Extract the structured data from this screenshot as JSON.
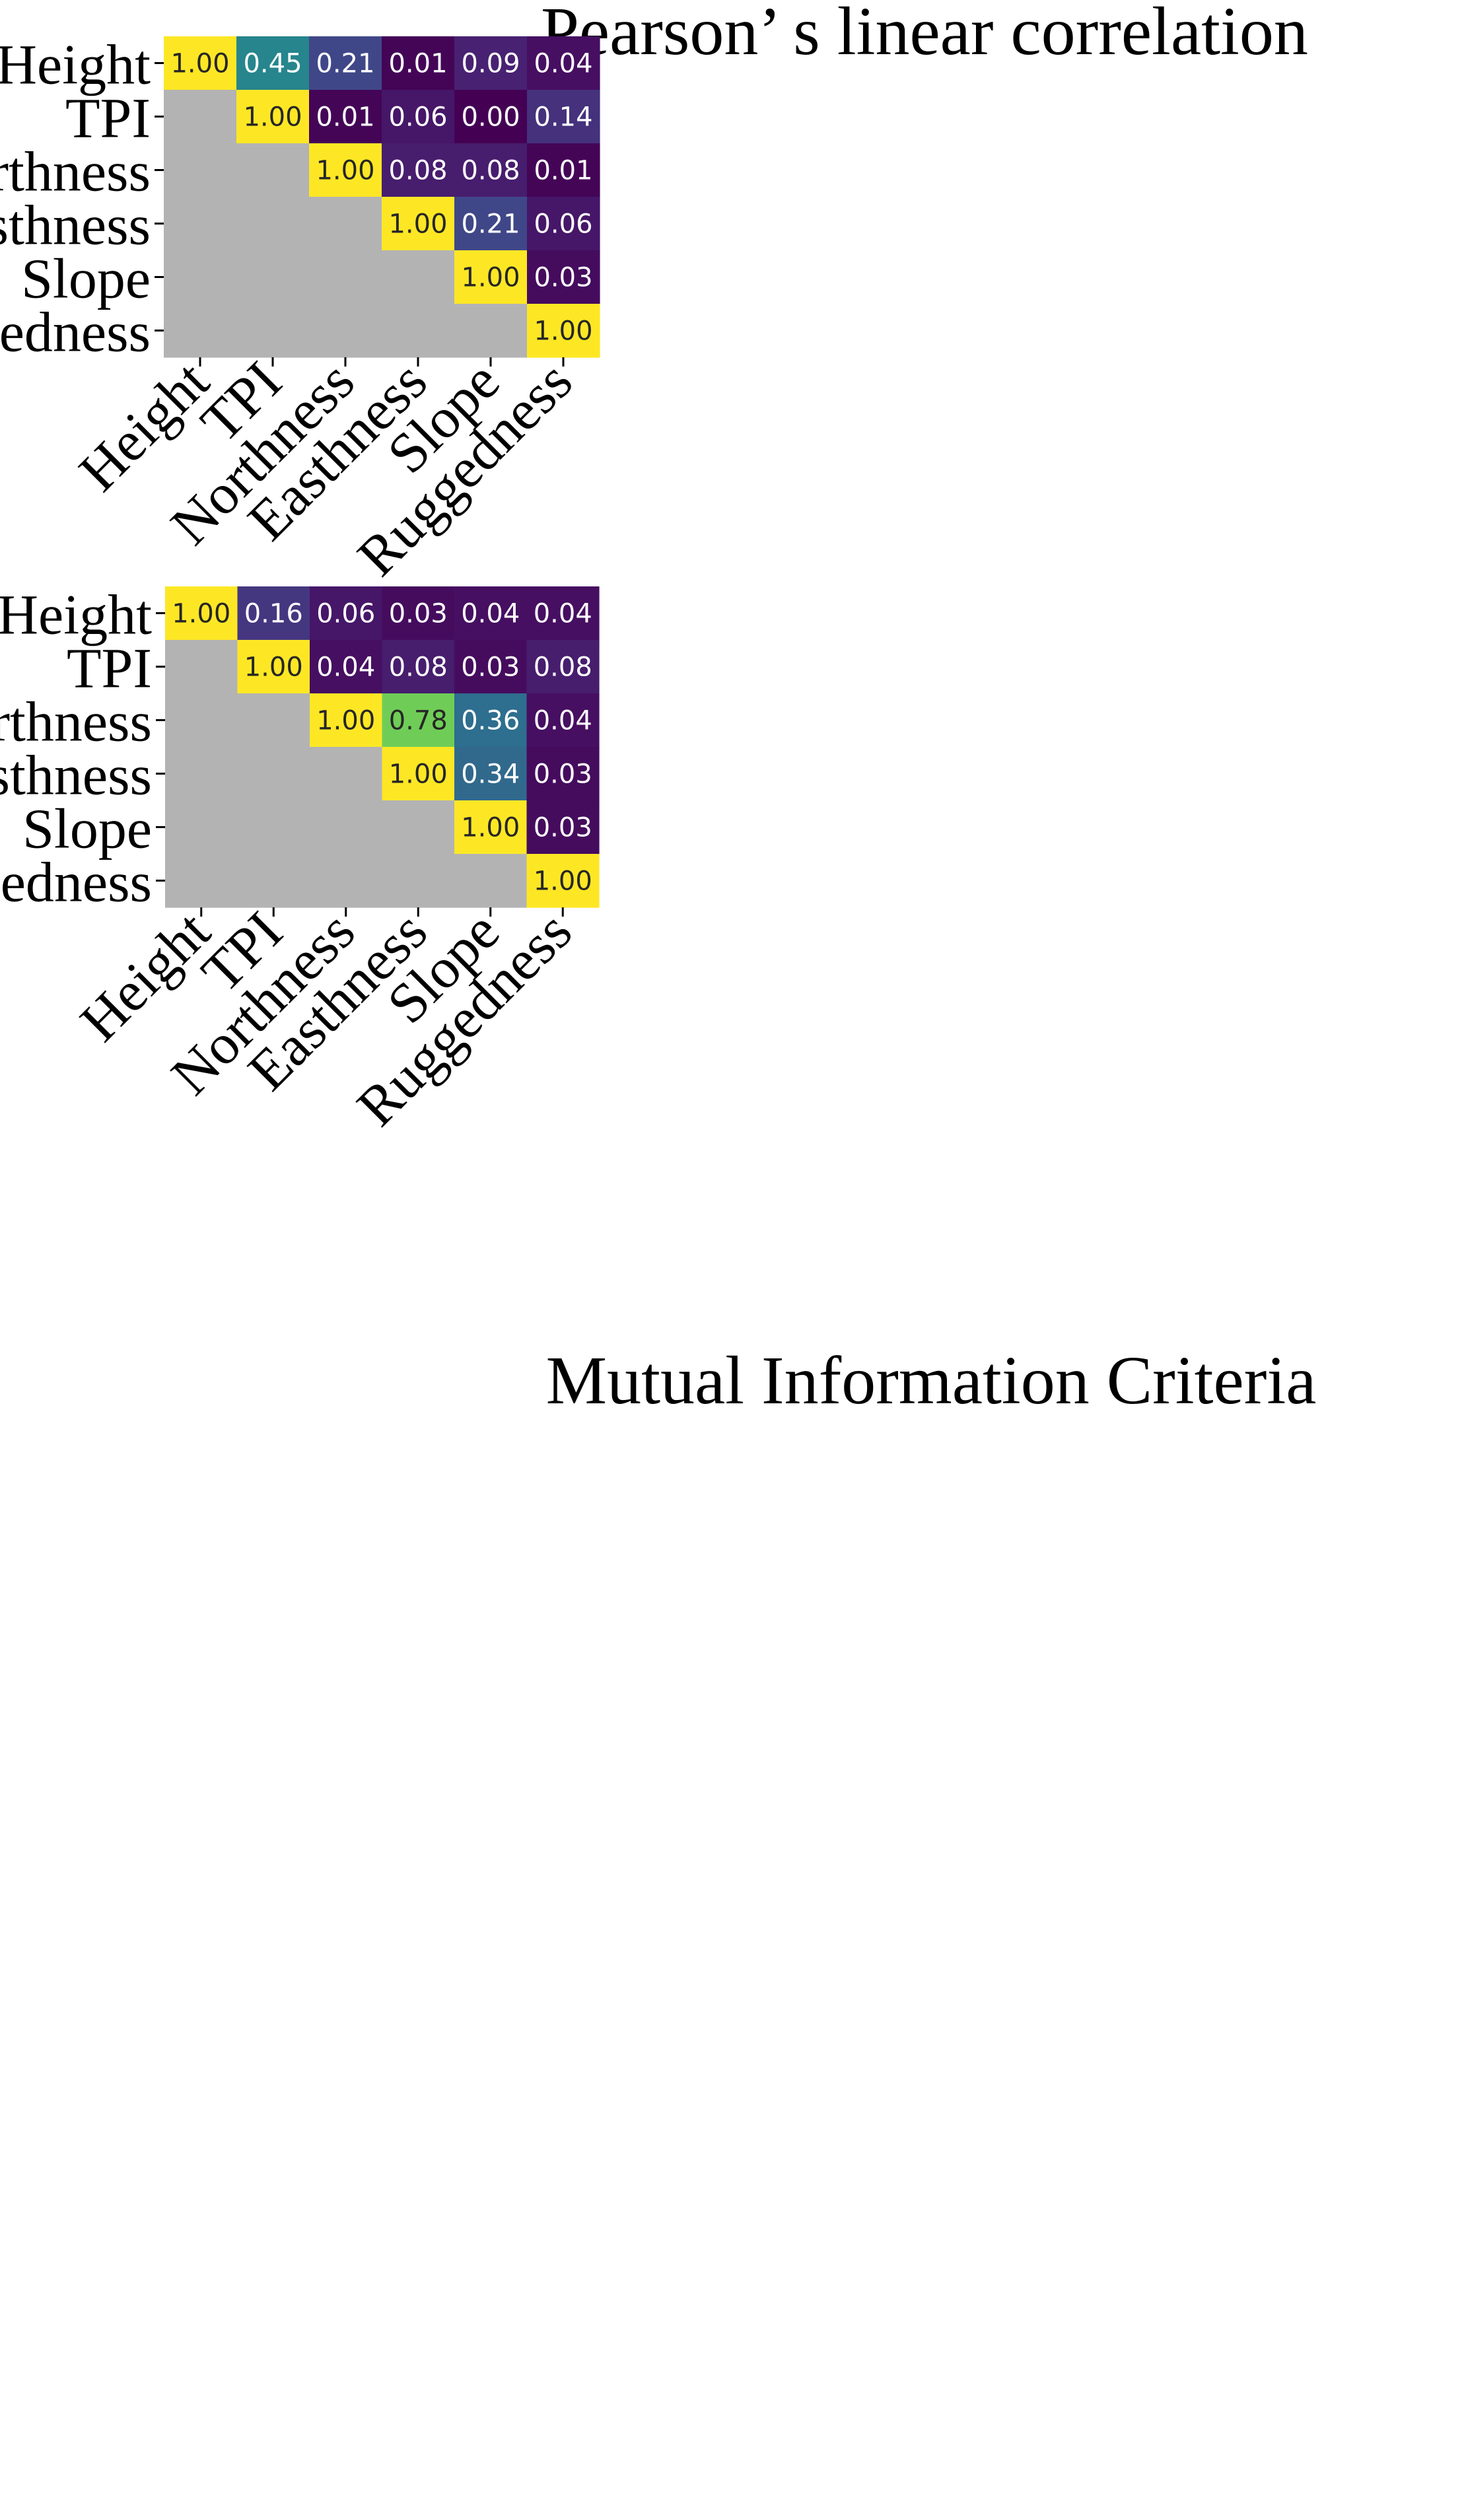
{
  "chart_data": [
    {
      "type": "heatmap",
      "title": "Pearson’ s linear correlation",
      "xlabel": "",
      "ylabel": "",
      "colormap": "viridis",
      "value_range": [
        0,
        1
      ],
      "lower_triangle_color": "#b3b3b3",
      "categories": [
        "Height",
        "TPI",
        "Northness",
        "Easthness",
        "Slope",
        "Ruggedness"
      ],
      "values": [
        [
          "1.00",
          "0.45",
          "0.21",
          "0.01",
          "0.09",
          "0.04"
        ],
        [
          null,
          "1.00",
          "0.01",
          "0.06",
          "0.00",
          "0.14"
        ],
        [
          null,
          null,
          "1.00",
          "0.08",
          "0.08",
          "0.01"
        ],
        [
          null,
          null,
          null,
          "1.00",
          "0.21",
          "0.06"
        ],
        [
          null,
          null,
          null,
          null,
          "1.00",
          "0.03"
        ],
        [
          null,
          null,
          null,
          null,
          null,
          "1.00"
        ]
      ]
    },
    {
      "type": "heatmap",
      "title": "Mutual Information Criteria",
      "xlabel": "",
      "ylabel": "",
      "colormap": "viridis",
      "value_range": [
        0,
        1
      ],
      "lower_triangle_color": "#b3b3b3",
      "categories": [
        "Height",
        "TPI",
        "Northness",
        "Easthness",
        "Slope",
        "Ruggedness"
      ],
      "values": [
        [
          "1.00",
          "0.16",
          "0.06",
          "0.03",
          "0.04",
          "0.04"
        ],
        [
          null,
          "1.00",
          "0.04",
          "0.08",
          "0.03",
          "0.08"
        ],
        [
          null,
          null,
          "1.00",
          "0.78",
          "0.36",
          "0.04"
        ],
        [
          null,
          null,
          null,
          "1.00",
          "0.34",
          "0.03"
        ],
        [
          null,
          null,
          null,
          null,
          "1.00",
          "0.03"
        ],
        [
          null,
          null,
          null,
          null,
          null,
          "1.00"
        ]
      ]
    }
  ]
}
